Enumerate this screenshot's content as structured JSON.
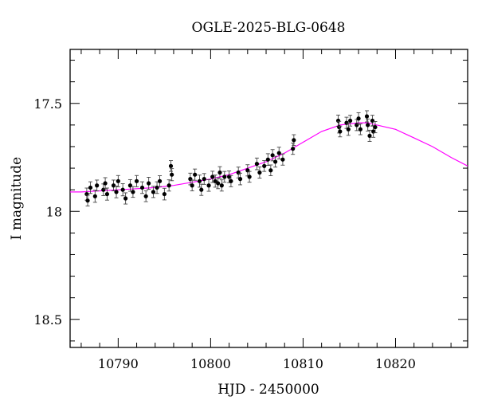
{
  "chart_data": {
    "type": "scatter",
    "title": "OGLE-2025-BLG-0648",
    "xlabel": "HJD - 2450000",
    "ylabel": "I magnitude",
    "xlim": [
      10784.8,
      10827.8
    ],
    "ylim": [
      18.63,
      17.25
    ],
    "y_inverted": true,
    "x_ticks": [
      10790,
      10800,
      10810,
      10820
    ],
    "y_ticks": [
      17.5,
      18,
      18.5
    ],
    "x_tick_labels": [
      "10790",
      "10800",
      "10810",
      "10820"
    ],
    "y_tick_labels": [
      "17.5",
      "18",
      "18.5"
    ],
    "model_color": "#ff00ff",
    "point_color": "#000000",
    "model_curve": {
      "x": [
        10784.8,
        10786,
        10788,
        10790,
        10792,
        10794,
        10796,
        10798,
        10800,
        10802,
        10804,
        10806,
        10808,
        10810,
        10812,
        10814,
        10816,
        10817,
        10818,
        10820,
        10822,
        10824,
        10826,
        10827.8
      ],
      "y": [
        17.91,
        17.91,
        17.905,
        17.9,
        17.895,
        17.89,
        17.88,
        17.865,
        17.85,
        17.83,
        17.8,
        17.77,
        17.73,
        17.68,
        17.63,
        17.6,
        17.59,
        17.59,
        17.6,
        17.62,
        17.66,
        17.7,
        17.75,
        17.79
      ]
    },
    "series": [
      {
        "x": [
          10786.6,
          10786.7,
          10787.0,
          10787.5,
          10787.7,
          10788.4,
          10788.6,
          10788.8,
          10789.5,
          10789.8,
          10790.0,
          10790.5,
          10790.8,
          10791.3,
          10791.6,
          10792.0,
          10792.6,
          10793.0,
          10793.3,
          10793.8,
          10794.2,
          10794.5,
          10795.0,
          10795.5,
          10795.7,
          10795.8,
          10797.8,
          10798.0,
          10798.3,
          10798.8,
          10799.0,
          10799.3,
          10799.8,
          10800.2,
          10800.5,
          10800.8,
          10801.0,
          10801.2,
          10801.5,
          10802.0,
          10802.2,
          10803.0,
          10803.2,
          10804.0,
          10804.2,
          10805.0,
          10805.3,
          10805.8,
          10806.2,
          10806.5,
          10806.7,
          10807.0,
          10807.4,
          10807.8,
          10808.9,
          10809.0,
          10813.8,
          10813.9,
          10814.0,
          10814.7,
          10814.9,
          10815.1,
          10815.8,
          10816.0,
          10816.2,
          10816.9,
          10817.0,
          10817.2,
          10817.5,
          10817.6,
          10817.8
        ],
        "y": [
          17.92,
          17.95,
          17.89,
          17.93,
          17.88,
          17.9,
          17.87,
          17.92,
          17.88,
          17.91,
          17.86,
          17.9,
          17.94,
          17.88,
          17.91,
          17.86,
          17.89,
          17.93,
          17.87,
          17.91,
          17.89,
          17.86,
          17.92,
          17.88,
          17.79,
          17.83,
          17.85,
          17.88,
          17.83,
          17.86,
          17.9,
          17.85,
          17.88,
          17.84,
          17.86,
          17.87,
          17.82,
          17.88,
          17.84,
          17.84,
          17.86,
          17.82,
          17.85,
          17.81,
          17.84,
          17.78,
          17.82,
          17.79,
          17.76,
          17.81,
          17.74,
          17.77,
          17.73,
          17.76,
          17.71,
          17.67,
          17.58,
          17.61,
          17.63,
          17.59,
          17.62,
          17.58,
          17.6,
          17.57,
          17.62,
          17.56,
          17.6,
          17.65,
          17.58,
          17.63,
          17.61
        ],
        "err": [
          0.028,
          0.025,
          0.027,
          0.028,
          0.025,
          0.027,
          0.026,
          0.028,
          0.025,
          0.027,
          0.026,
          0.028,
          0.026,
          0.027,
          0.025,
          0.026,
          0.027,
          0.025,
          0.028,
          0.026,
          0.027,
          0.025,
          0.027,
          0.026,
          0.025,
          0.028,
          0.027,
          0.025,
          0.026,
          0.028,
          0.026,
          0.025,
          0.027,
          0.026,
          0.028,
          0.025,
          0.027,
          0.026,
          0.025,
          0.027,
          0.026,
          0.025,
          0.027,
          0.026,
          0.025,
          0.027,
          0.026,
          0.025,
          0.027,
          0.025,
          0.026,
          0.025,
          0.027,
          0.026,
          0.026,
          0.025,
          0.026,
          0.027,
          0.025,
          0.026,
          0.028,
          0.025,
          0.026,
          0.027,
          0.025,
          0.026,
          0.028,
          0.026,
          0.025,
          0.027,
          0.026
        ]
      }
    ]
  }
}
